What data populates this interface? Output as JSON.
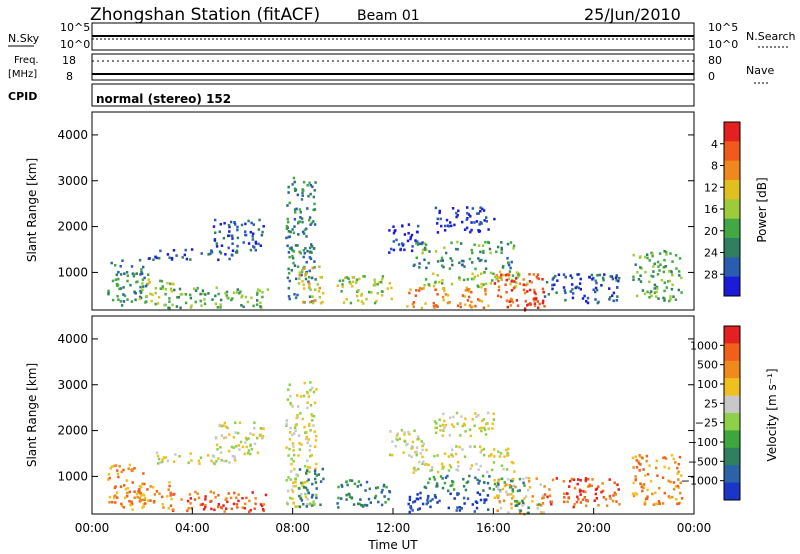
{
  "header": {
    "station": "Zhongshan Station (fitACF)",
    "beam": "Beam 01",
    "date": "25/Jun/2010"
  },
  "summary": {
    "nsky_label": "N.Sky",
    "nsearch_label": "N.Search",
    "left_ticks": [
      "10^5",
      "10^0"
    ],
    "right_ticks": [
      "10^5",
      "10^0"
    ],
    "freq_label_1": "Freq.",
    "freq_label_2": "[MHz]",
    "freq_ticks": [
      "18",
      "8"
    ],
    "nave_label": "Nave",
    "nave_ticks": [
      "80",
      "0"
    ],
    "cpid_label": "CPID",
    "cpid_value": "normal (stereo) 152"
  },
  "chart_data": [
    {
      "type": "heatmap",
      "name": "power",
      "ylabel": "Slant Range [km]",
      "xlabel": "",
      "x_range_hours": [
        0,
        24
      ],
      "ylim": [
        180,
        4500
      ],
      "y_ticks": [
        "1000",
        "2000",
        "3000",
        "4000"
      ],
      "colorbar": {
        "label": "Power [dB]",
        "ticks": [
          "4",
          "8",
          "12",
          "16",
          "20",
          "24",
          "28"
        ],
        "colors": [
          "#1b1bd8",
          "#2a5db0",
          "#2f7f60",
          "#43a843",
          "#9ccc3c",
          "#e0c020",
          "#f08820",
          "#f05a1c",
          "#e52020"
        ]
      },
      "blobs": [
        {
          "t0": 0.6,
          "t1": 2.2,
          "r0": 300,
          "r1": 1300,
          "v": 2
        },
        {
          "t0": 1.8,
          "t1": 3.2,
          "r0": 300,
          "r1": 900,
          "v": 4
        },
        {
          "t0": 2.2,
          "t1": 5.8,
          "r0": 1300,
          "r1": 1550,
          "v": 1
        },
        {
          "t0": 4.8,
          "t1": 6.8,
          "r0": 1500,
          "r1": 2200,
          "v": 1
        },
        {
          "t0": 3.0,
          "t1": 7.0,
          "r0": 250,
          "r1": 700,
          "v": 3
        },
        {
          "t0": 7.7,
          "t1": 8.9,
          "r0": 350,
          "r1": 3100,
          "v": 2
        },
        {
          "t0": 8.2,
          "t1": 9.2,
          "r0": 350,
          "r1": 1200,
          "v": 5
        },
        {
          "t0": 9.7,
          "t1": 11.9,
          "r0": 350,
          "r1": 950,
          "v": 4
        },
        {
          "t0": 11.8,
          "t1": 13.2,
          "r0": 1450,
          "r1": 2100,
          "v": 0
        },
        {
          "t0": 12.7,
          "t1": 16.8,
          "r0": 1450,
          "r1": 1700,
          "v": 3
        },
        {
          "t0": 12.7,
          "t1": 16.8,
          "r0": 1100,
          "r1": 1350,
          "v": 2
        },
        {
          "t0": 13.2,
          "t1": 17.4,
          "r0": 700,
          "r1": 1050,
          "v": 4
        },
        {
          "t0": 13.6,
          "t1": 16.0,
          "r0": 1900,
          "r1": 2450,
          "v": 0
        },
        {
          "t0": 12.5,
          "t1": 15.8,
          "r0": 250,
          "r1": 700,
          "v": 6
        },
        {
          "t0": 16.0,
          "t1": 18.0,
          "r0": 200,
          "r1": 1000,
          "v": 7
        },
        {
          "t0": 16.8,
          "t1": 17.8,
          "r0": 200,
          "r1": 500,
          "v": 8
        },
        {
          "t0": 18.0,
          "t1": 21.0,
          "r0": 350,
          "r1": 1000,
          "v": 1
        },
        {
          "t0": 21.5,
          "t1": 23.5,
          "r0": 400,
          "r1": 1500,
          "v": 3
        }
      ]
    },
    {
      "type": "heatmap",
      "name": "velocity",
      "ylabel": "Slant Range [km]",
      "xlabel": "Time UT",
      "x_range_hours": [
        0,
        24
      ],
      "x_ticks": [
        "00:00",
        "04:00",
        "08:00",
        "12:00",
        "16:00",
        "20:00",
        "00:00"
      ],
      "ylim": [
        180,
        4500
      ],
      "y_ticks": [
        "1000",
        "2000",
        "3000",
        "4000"
      ],
      "colorbar": {
        "label": "Velocity [m s⁻¹]",
        "ticks": [
          "1000",
          "500",
          "100",
          "25",
          "−25",
          "−100",
          "−500",
          "−1000"
        ],
        "colors": [
          "#1a36c8",
          "#2c62a8",
          "#2f7f60",
          "#3da63d",
          "#8ed04a",
          "#c8c8c8",
          "#f0c020",
          "#f08a1c",
          "#f0601a",
          "#e52020"
        ]
      },
      "blobs": [
        {
          "t0": 0.6,
          "t1": 2.2,
          "r0": 300,
          "r1": 1300,
          "v": 7
        },
        {
          "t0": 1.8,
          "t1": 3.2,
          "r0": 300,
          "r1": 900,
          "v": 7
        },
        {
          "t0": 2.2,
          "t1": 5.8,
          "r0": 1300,
          "r1": 1550,
          "v": 5
        },
        {
          "t0": 4.8,
          "t1": 6.8,
          "r0": 1500,
          "r1": 2200,
          "v": 5
        },
        {
          "t0": 3.0,
          "t1": 7.0,
          "r0": 250,
          "r1": 700,
          "v": 8
        },
        {
          "t0": 7.7,
          "t1": 8.9,
          "r0": 350,
          "r1": 3100,
          "v": 5
        },
        {
          "t0": 8.2,
          "t1": 9.2,
          "r0": 350,
          "r1": 1200,
          "v": 2
        },
        {
          "t0": 9.7,
          "t1": 11.9,
          "r0": 350,
          "r1": 950,
          "v": 2
        },
        {
          "t0": 11.8,
          "t1": 13.2,
          "r0": 1450,
          "r1": 2100,
          "v": 5
        },
        {
          "t0": 12.7,
          "t1": 16.8,
          "r0": 1450,
          "r1": 1700,
          "v": 5
        },
        {
          "t0": 12.7,
          "t1": 16.8,
          "r0": 1100,
          "r1": 1350,
          "v": 5
        },
        {
          "t0": 13.2,
          "t1": 17.4,
          "r0": 700,
          "r1": 1050,
          "v": 2
        },
        {
          "t0": 13.6,
          "t1": 16.0,
          "r0": 1900,
          "r1": 2450,
          "v": 5
        },
        {
          "t0": 12.5,
          "t1": 15.8,
          "r0": 250,
          "r1": 700,
          "v": 0
        },
        {
          "t0": 16.0,
          "t1": 18.0,
          "r0": 200,
          "r1": 1000,
          "v": 6
        },
        {
          "t0": 16.8,
          "t1": 17.8,
          "r0": 200,
          "r1": 500,
          "v": 3
        },
        {
          "t0": 18.0,
          "t1": 21.0,
          "r0": 350,
          "r1": 1000,
          "v": 8
        },
        {
          "t0": 21.5,
          "t1": 23.5,
          "r0": 400,
          "r1": 1500,
          "v": 7
        }
      ]
    }
  ]
}
